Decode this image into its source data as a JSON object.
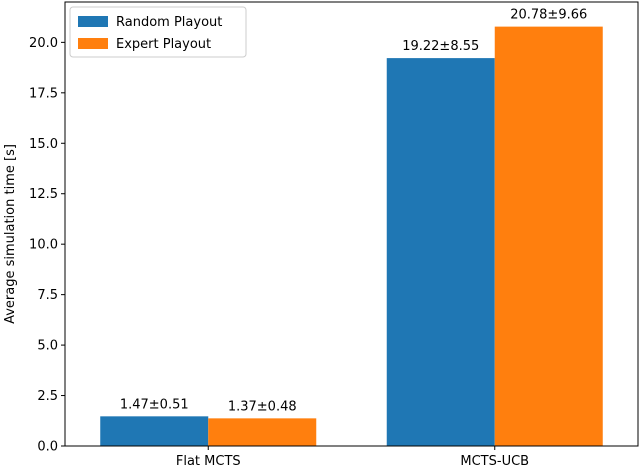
{
  "chart_data": {
    "type": "bar",
    "title": "",
    "xlabel": "",
    "ylabel": "Average simulation time [s]",
    "categories": [
      "Flat MCTS",
      "MCTS-UCB"
    ],
    "series": [
      {
        "name": "Random Playout",
        "color": "#1f77b4",
        "values": [
          1.47,
          19.22
        ],
        "labels": [
          "1.47±0.51",
          "19.22±8.55"
        ]
      },
      {
        "name": "Expert Playout",
        "color": "#ff7f0e",
        "values": [
          1.37,
          20.78
        ],
        "labels": [
          "1.37±0.48",
          "20.78±9.66"
        ]
      }
    ],
    "ylim": [
      0,
      22
    ],
    "yticks": [
      0.0,
      2.5,
      5.0,
      7.5,
      10.0,
      12.5,
      15.0,
      17.5,
      20.0
    ],
    "ytick_labels": [
      "0.0",
      "2.5",
      "5.0",
      "7.5",
      "10.0",
      "12.5",
      "15.0",
      "17.5",
      "20.0"
    ],
    "grid": false,
    "legend": "top-left"
  }
}
